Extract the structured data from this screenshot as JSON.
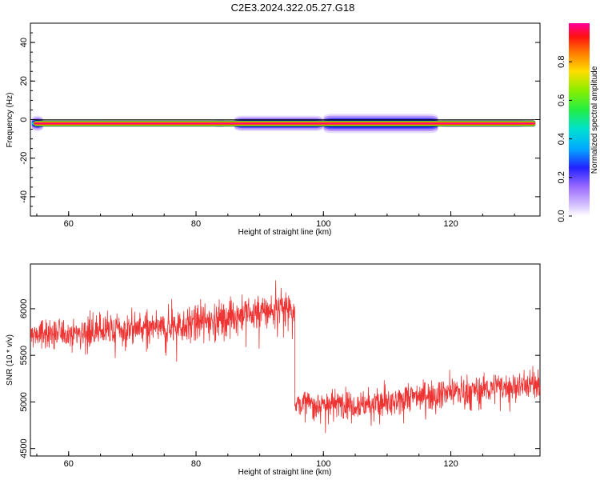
{
  "title": "C2E3.2024.322.05.27.G18",
  "chart_data": [
    {
      "type": "heatmap",
      "xlabel": "Height of straight line (km)",
      "ylabel": "Frequency (Hz)",
      "xlim": [
        54,
        134
      ],
      "ylim": [
        -50,
        50
      ],
      "xticks": [
        "60",
        "80",
        "100",
        "120"
      ],
      "yticks": [
        "40",
        "20",
        "0",
        "-20",
        "-40"
      ],
      "colorbar": {
        "label": "Normalized spectral amplitude",
        "range": [
          0.0,
          1.0
        ],
        "ticks": [
          "0.0",
          "0.2",
          "0.4",
          "0.6",
          "0.8"
        ]
      },
      "band": {
        "center_hz": -2,
        "x_start_km": 54.5,
        "x_end_km": 133.3
      },
      "spread": [
        {
          "x_start_km": 54.2,
          "x_end_km": 56.0,
          "halfwidth_hz": 4
        },
        {
          "x_start_km": 82.5,
          "x_end_km": 85.0,
          "halfwidth_hz": 2
        },
        {
          "x_start_km": 86.0,
          "x_end_km": 100.0,
          "halfwidth_hz": 4
        },
        {
          "x_start_km": 100.0,
          "x_end_km": 118.0,
          "halfwidth_hz": 5
        },
        {
          "x_start_km": 118.0,
          "x_end_km": 132.0,
          "halfwidth_hz": 2
        }
      ]
    },
    {
      "type": "line",
      "xlabel": "Height of straight line (km)",
      "ylabel": "SNR (10 * v/v)",
      "xlim": [
        54,
        134
      ],
      "ylim": [
        4420,
        6480
      ],
      "xticks": [
        "60",
        "80",
        "100",
        "120"
      ],
      "yticks": [
        "4500",
        "5000",
        "5500",
        "6000"
      ],
      "series": [
        {
          "x_range": [
            54,
            134
          ],
          "color": "#ee3333",
          "segments": [
            {
              "x_start": 54,
              "x_end": 75,
              "y_start": 5720,
              "y_end": 5800,
              "noise": 120
            },
            {
              "x_start": 75,
              "x_end": 95.5,
              "y_start": 5800,
              "y_end": 6020,
              "noise": 140
            },
            {
              "x_start": 95.5,
              "x_end": 112,
              "y_start": 4980,
              "y_end": 4980,
              "noise": 110
            },
            {
              "x_start": 112,
              "x_end": 134,
              "y_start": 5050,
              "y_end": 5200,
              "noise": 110
            }
          ]
        }
      ]
    }
  ]
}
